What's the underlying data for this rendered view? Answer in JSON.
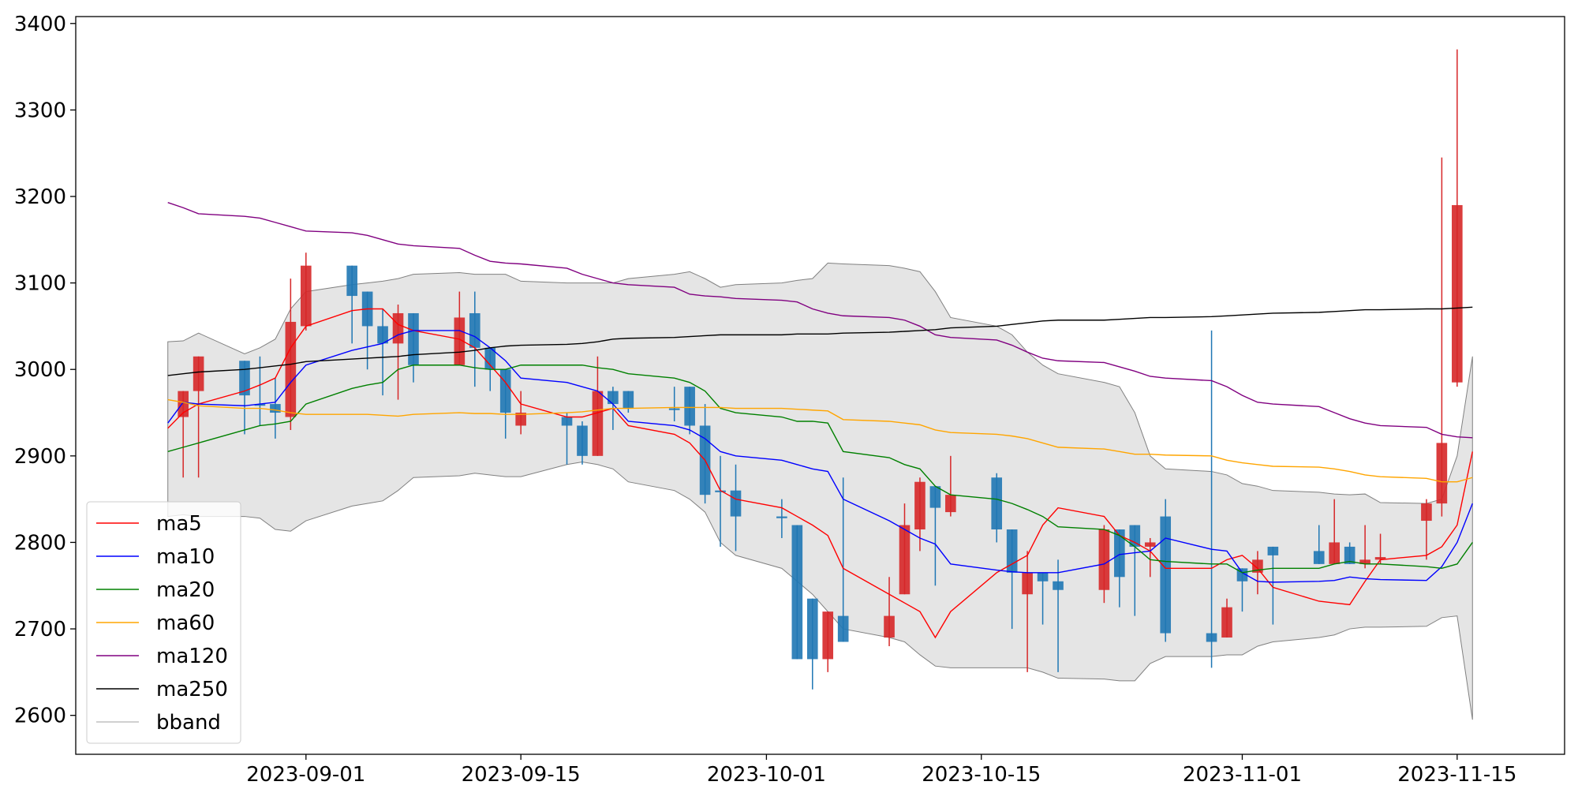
{
  "chart_data": {
    "type": "candlestick",
    "x": [
      "2023-08-23",
      "2023-08-24",
      "2023-08-25",
      "2023-08-28",
      "2023-08-29",
      "2023-08-30",
      "2023-08-31",
      "2023-09-01",
      "2023-09-04",
      "2023-09-05",
      "2023-09-06",
      "2023-09-07",
      "2023-09-08",
      "2023-09-11",
      "2023-09-12",
      "2023-09-13",
      "2023-09-14",
      "2023-09-15",
      "2023-09-18",
      "2023-09-19",
      "2023-09-20",
      "2023-09-21",
      "2023-09-22",
      "2023-09-25",
      "2023-09-26",
      "2023-09-27",
      "2023-09-28",
      "2023-09-29",
      "2023-10-02",
      "2023-10-03",
      "2023-10-04",
      "2023-10-05",
      "2023-10-06",
      "2023-10-09",
      "2023-10-10",
      "2023-10-11",
      "2023-10-12",
      "2023-10-13",
      "2023-10-16",
      "2023-10-17",
      "2023-10-18",
      "2023-10-19",
      "2023-10-20",
      "2023-10-23",
      "2023-10-24",
      "2023-10-25",
      "2023-10-26",
      "2023-10-27",
      "2023-10-30",
      "2023-10-31",
      "2023-11-01",
      "2023-11-02",
      "2023-11-03",
      "2023-11-06",
      "2023-11-07",
      "2023-11-08",
      "2023-11-09",
      "2023-11-10",
      "2023-11-13",
      "2023-11-14",
      "2023-11-15",
      "2023-11-16"
    ],
    "open": [
      null,
      2945,
      2975,
      3010,
      2960,
      2960,
      2945,
      3050,
      3120,
      3090,
      3050,
      3030,
      3065,
      3005,
      3065,
      3025,
      3000,
      2935,
      2945,
      2935,
      2900,
      2975,
      2975,
      2955,
      2980,
      2935,
      2860,
      2860,
      2830,
      2820,
      2735,
      2665,
      2715,
      2690,
      2740,
      2815,
      2865,
      2835,
      2875,
      2815,
      2740,
      2765,
      2755,
      2745,
      2815,
      2820,
      2795,
      2830,
      2695,
      2690,
      2770,
      2765,
      2795,
      2790,
      2775,
      2795,
      2775,
      2780,
      2825,
      2845,
      2985,
      null
    ],
    "high": [
      null,
      2975,
      3015,
      3010,
      3015,
      2990,
      3105,
      3135,
      3120,
      3090,
      3070,
      3075,
      3065,
      3090,
      3090,
      3025,
      3000,
      2975,
      2950,
      2940,
      3015,
      2980,
      2975,
      2980,
      2980,
      2960,
      2900,
      2890,
      2850,
      2820,
      2735,
      2720,
      2875,
      2760,
      2845,
      2875,
      2865,
      2900,
      2880,
      2815,
      2790,
      2765,
      2780,
      2820,
      2815,
      2820,
      2805,
      2850,
      3045,
      2735,
      2770,
      2790,
      2795,
      2820,
      2850,
      2800,
      2820,
      2810,
      2850,
      3245,
      3370,
      null
    ],
    "low": [
      null,
      2875,
      2875,
      2925,
      2935,
      2920,
      2930,
      3045,
      3030,
      3000,
      2970,
      2965,
      2985,
      3005,
      2980,
      2975,
      2920,
      2925,
      2890,
      2890,
      2900,
      2930,
      2950,
      2940,
      2925,
      2845,
      2795,
      2790,
      2805,
      2665,
      2630,
      2650,
      2685,
      2680,
      2740,
      2790,
      2750,
      2830,
      2800,
      2700,
      2650,
      2705,
      2650,
      2730,
      2725,
      2715,
      2760,
      2685,
      2655,
      2690,
      2720,
      2740,
      2705,
      2775,
      2775,
      2775,
      2770,
      2775,
      2780,
      2830,
      2980,
      null
    ],
    "close": [
      null,
      2975,
      3015,
      2970,
      2958,
      2950,
      3055,
      3120,
      3085,
      3050,
      3030,
      3065,
      3005,
      3060,
      3025,
      3000,
      2950,
      2950,
      2935,
      2900,
      2975,
      2960,
      2955,
      2953,
      2935,
      2855,
      2858,
      2830,
      2828,
      2665,
      2665,
      2720,
      2685,
      2715,
      2820,
      2870,
      2840,
      2855,
      2815,
      2765,
      2765,
      2755,
      2745,
      2815,
      2760,
      2795,
      2800,
      2695,
      2685,
      2725,
      2755,
      2780,
      2785,
      2775,
      2800,
      2775,
      2780,
      2783,
      2845,
      2915,
      3190,
      null
    ],
    "up_color": "#d62728",
    "down_color": "#1f77b4",
    "series": [
      {
        "name": "ma5",
        "color": "#ff0000",
        "values": [
          2932,
          2950,
          2960,
          2975,
          2982,
          2990,
          3025,
          3050,
          3068,
          3070,
          3070,
          3052,
          3045,
          3035,
          3025,
          3005,
          2985,
          2960,
          2945,
          2945,
          2950,
          2955,
          2935,
          2925,
          2915,
          2895,
          2860,
          2850,
          2840,
          2830,
          2820,
          2808,
          2770,
          2740,
          2730,
          2720,
          2690,
          2720,
          2765,
          2775,
          2785,
          2820,
          2840,
          2830,
          2808,
          2800,
          2790,
          2770,
          2770,
          2780,
          2785,
          2770,
          2748,
          2732,
          2730,
          2728,
          2755,
          2780,
          2785,
          2795,
          2820,
          2905
        ]
      },
      {
        "name": "ma10",
        "color": "#0000ff",
        "values": [
          2938,
          2962,
          2960,
          2958,
          2960,
          2962,
          2985,
          3005,
          3022,
          3026,
          3030,
          3040,
          3045,
          3045,
          3038,
          3025,
          3010,
          2990,
          2985,
          2980,
          2975,
          2960,
          2940,
          2935,
          2930,
          2920,
          2905,
          2900,
          2895,
          2890,
          2885,
          2882,
          2850,
          2825,
          2815,
          2805,
          2798,
          2775,
          2768,
          2766,
          2765,
          2765,
          2765,
          2775,
          2786,
          2788,
          2790,
          2805,
          2792,
          2790,
          2765,
          2755,
          2754,
          2755,
          2756,
          2760,
          2758,
          2757,
          2756,
          2772,
          2800,
          2845
        ]
      },
      {
        "name": "ma20",
        "color": "#008000",
        "values": [
          2905,
          2910,
          2915,
          2930,
          2935,
          2937,
          2940,
          2960,
          2978,
          2982,
          2985,
          3000,
          3005,
          3005,
          3002,
          3000,
          3000,
          3005,
          3005,
          3005,
          3002,
          3000,
          2995,
          2990,
          2985,
          2975,
          2955,
          2950,
          2945,
          2940,
          2940,
          2938,
          2905,
          2898,
          2890,
          2885,
          2865,
          2855,
          2850,
          2845,
          2838,
          2830,
          2818,
          2815,
          2808,
          2795,
          2780,
          2778,
          2775,
          2775,
          2765,
          2768,
          2770,
          2770,
          2775,
          2778,
          2775,
          2775,
          2772,
          2770,
          2775,
          2800
        ]
      },
      {
        "name": "ma60",
        "color": "#ffa500",
        "values": [
          2965,
          2962,
          2958,
          2955,
          2955,
          2953,
          2950,
          2948,
          2948,
          2948,
          2947,
          2946,
          2948,
          2950,
          2949,
          2949,
          2948,
          2948,
          2950,
          2951,
          2953,
          2955,
          2955,
          2956,
          2956,
          2956,
          2956,
          2955,
          2955,
          2954,
          2953,
          2952,
          2942,
          2940,
          2938,
          2936,
          2930,
          2927,
          2925,
          2923,
          2920,
          2915,
          2910,
          2908,
          2905,
          2902,
          2902,
          2901,
          2900,
          2895,
          2892,
          2890,
          2888,
          2887,
          2885,
          2882,
          2878,
          2876,
          2874,
          2870,
          2870,
          2875
        ]
      },
      {
        "name": "ma120",
        "color": "#800080",
        "values": [
          3193,
          3187,
          3180,
          3177,
          3175,
          3170,
          3165,
          3160,
          3158,
          3155,
          3150,
          3145,
          3143,
          3140,
          3132,
          3125,
          3123,
          3122,
          3117,
          3110,
          3105,
          3100,
          3098,
          3095,
          3087,
          3085,
          3084,
          3082,
          3080,
          3078,
          3070,
          3065,
          3062,
          3060,
          3057,
          3050,
          3040,
          3037,
          3034,
          3028,
          3020,
          3013,
          3010,
          3008,
          3003,
          2998,
          2992,
          2990,
          2987,
          2980,
          2970,
          2962,
          2960,
          2957,
          2950,
          2943,
          2938,
          2935,
          2933,
          2925,
          2922,
          2921
        ]
      },
      {
        "name": "ma250",
        "color": "#000000",
        "values": [
          2993,
          2995,
          2997,
          3000,
          3002,
          3004,
          3006,
          3009,
          3012,
          3013,
          3014,
          3015,
          3017,
          3020,
          3022,
          3025,
          3027,
          3028,
          3029,
          3030,
          3032,
          3035,
          3036,
          3037,
          3038,
          3039,
          3040,
          3040,
          3040,
          3041,
          3041,
          3041,
          3042,
          3043,
          3044,
          3045,
          3046,
          3048,
          3050,
          3052,
          3054,
          3056,
          3057,
          3057,
          3058,
          3059,
          3060,
          3060,
          3061,
          3062,
          3063,
          3064,
          3065,
          3066,
          3067,
          3068,
          3069,
          3069,
          3070,
          3070,
          3071,
          3072
        ]
      }
    ],
    "bband": {
      "name": "bband",
      "color": "#808080",
      "fill": "#e5e5e5",
      "upper": [
        3032,
        3033,
        3042,
        3018,
        3025,
        3035,
        3070,
        3090,
        3098,
        3100,
        3102,
        3105,
        3110,
        3112,
        3110,
        3110,
        3110,
        3102,
        3100,
        3100,
        3100,
        3100,
        3105,
        3110,
        3113,
        3105,
        3095,
        3098,
        3100,
        3103,
        3105,
        3123,
        3122,
        3120,
        3117,
        3113,
        3090,
        3060,
        3050,
        3040,
        3020,
        3005,
        2995,
        2985,
        2980,
        2950,
        2900,
        2885,
        2882,
        2878,
        2868,
        2865,
        2860,
        2858,
        2856,
        2855,
        2856,
        2846,
        2845,
        2850,
        2900,
        3015
      ],
      "lower": [
        2830,
        2832,
        2830,
        2830,
        2828,
        2815,
        2813,
        2825,
        2842,
        2845,
        2848,
        2860,
        2875,
        2877,
        2880,
        2878,
        2876,
        2876,
        2890,
        2893,
        2890,
        2885,
        2870,
        2860,
        2850,
        2835,
        2800,
        2785,
        2770,
        2755,
        2740,
        2720,
        2700,
        2690,
        2685,
        2670,
        2657,
        2655,
        2655,
        2655,
        2655,
        2650,
        2643,
        2642,
        2640,
        2640,
        2660,
        2668,
        2668,
        2670,
        2670,
        2680,
        2685,
        2690,
        2693,
        2700,
        2702,
        2702,
        2703,
        2713,
        2715,
        2595
      ]
    },
    "xlim": [
      "2023-08-17",
      "2023-11-22"
    ],
    "xticks": [
      "2023-09-01",
      "2023-09-15",
      "2023-10-01",
      "2023-10-15",
      "2023-11-01",
      "2023-11-15"
    ],
    "ylim": [
      2555,
      3408
    ],
    "yticks": [
      2600,
      2700,
      2800,
      2900,
      3000,
      3100,
      3200,
      3300,
      3400
    ],
    "legend": "lower left"
  }
}
